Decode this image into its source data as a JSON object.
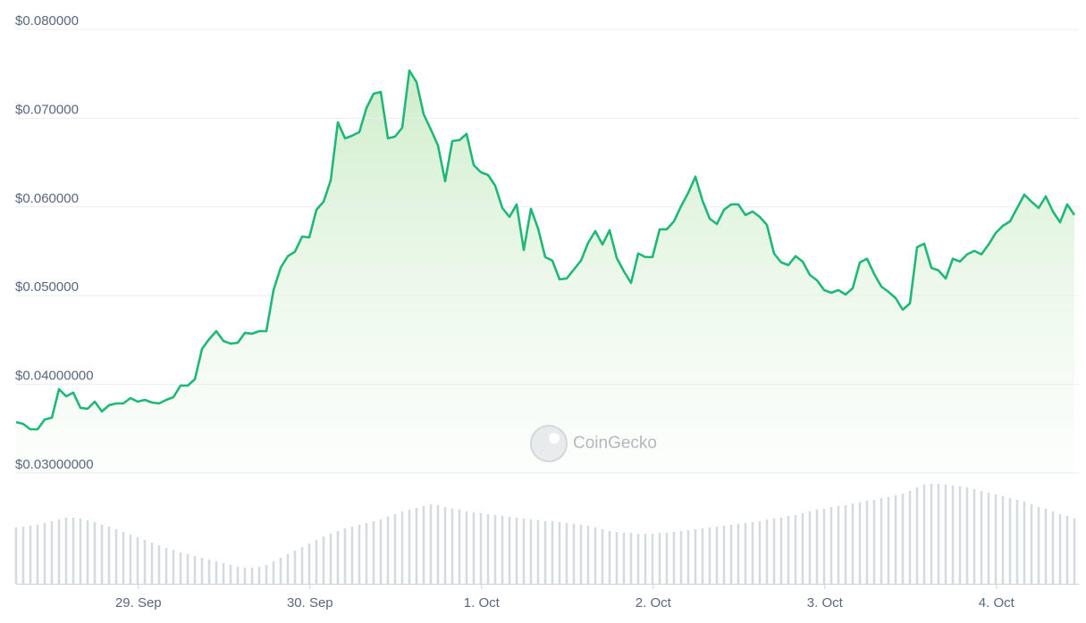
{
  "chart_data": {
    "type": "line",
    "color": "#1fb877",
    "values": [
      0.03574,
      0.03553,
      0.03493,
      0.03493,
      0.03604,
      0.03624,
      0.03946,
      0.03865,
      0.03906,
      0.03735,
      0.03724,
      0.03805,
      0.03694,
      0.03765,
      0.03785,
      0.03785,
      0.03845,
      0.03805,
      0.03825,
      0.03795,
      0.03785,
      0.03825,
      0.03855,
      0.03986,
      0.03986,
      0.04056,
      0.04399,
      0.04509,
      0.046,
      0.04489,
      0.04459,
      0.04469,
      0.0458,
      0.0457,
      0.046,
      0.046,
      0.05062,
      0.05314,
      0.05445,
      0.05495,
      0.05666,
      0.05656,
      0.05968,
      0.06058,
      0.063,
      0.06954,
      0.06773,
      0.06803,
      0.06843,
      0.07115,
      0.07276,
      0.07296,
      0.06773,
      0.06793,
      0.06893,
      0.07537,
      0.07406,
      0.07044,
      0.06873,
      0.06692,
      0.0629,
      0.06742,
      0.06753,
      0.06823,
      0.06471,
      0.0639,
      0.0636,
      0.06239,
      0.05988,
      0.05887,
      0.06028,
      0.05515,
      0.05978,
      0.05757,
      0.05435,
      0.05394,
      0.05183,
      0.05193,
      0.05294,
      0.05394,
      0.05596,
      0.05726,
      0.05576,
      0.05736,
      0.05425,
      0.05274,
      0.05143,
      0.05475,
      0.05435,
      0.05435,
      0.05747,
      0.05747,
      0.05837,
      0.06008,
      0.06159,
      0.0634,
      0.06068,
      0.05867,
      0.05807,
      0.05968,
      0.06028,
      0.06028,
      0.05908,
      0.05948,
      0.05887,
      0.05797,
      0.05475,
      0.05374,
      0.05344,
      0.05445,
      0.05384,
      0.05233,
      0.05173,
      0.05062,
      0.05032,
      0.05062,
      0.05012,
      0.05083,
      0.05374,
      0.05415,
      0.05244,
      0.05103,
      0.05042,
      0.04972,
      0.04841,
      0.04912,
      0.05545,
      0.05586,
      0.05314,
      0.05284,
      0.05193,
      0.05415,
      0.05384,
      0.05465,
      0.05505,
      0.05465,
      0.05576,
      0.05706,
      0.05787,
      0.05837,
      0.05988,
      0.06139,
      0.06058,
      0.05988,
      0.06119,
      0.05948,
      0.05827,
      0.06028,
      0.05908
    ],
    "volume": {
      "color": "#d5dade",
      "values": [
        63,
        64,
        65,
        66,
        68,
        70,
        72,
        74,
        74,
        73,
        71,
        69,
        66,
        64,
        61,
        58,
        55,
        52,
        49,
        46,
        43,
        40,
        38,
        35,
        33,
        31,
        29,
        27,
        25,
        23,
        21,
        19,
        18,
        18,
        19,
        21,
        25,
        29,
        33,
        37,
        41,
        45,
        49,
        53,
        56,
        59,
        62,
        64,
        66,
        68,
        70,
        72,
        75,
        78,
        81,
        83,
        85,
        87,
        89,
        88,
        86,
        84,
        83,
        81,
        80,
        79,
        78,
        77,
        76,
        75,
        74,
        73,
        72,
        71,
        70,
        70,
        69,
        68,
        67,
        66,
        65,
        63,
        61,
        59,
        58,
        57,
        57,
        56,
        56,
        56,
        57,
        57,
        58,
        59,
        60,
        61,
        62,
        63,
        64,
        65,
        66,
        67,
        68,
        69,
        70,
        72,
        73,
        74,
        76,
        77,
        79,
        81,
        83,
        84,
        86,
        87,
        88,
        90,
        91,
        93,
        94,
        96,
        97,
        99,
        101,
        104,
        108,
        111,
        112,
        112,
        111,
        110,
        109,
        108,
        106,
        104,
        102,
        100,
        98,
        96,
        94,
        92,
        89,
        86,
        84,
        81,
        78,
        76,
        73
      ]
    },
    "xlim": [
      0,
      148
    ],
    "xticks": [
      {
        "value": 17.1,
        "label": "29. Sep"
      },
      {
        "value": 41.1,
        "label": "30. Sep"
      },
      {
        "value": 65.1,
        "label": "1. Oct"
      },
      {
        "value": 89.1,
        "label": "2. Oct"
      },
      {
        "value": 113.1,
        "label": "3. Oct"
      },
      {
        "value": 137.1,
        "label": "4. Oct"
      }
    ],
    "ylim": [
      0.03,
      0.08
    ],
    "yticks": [
      {
        "value": 0.03,
        "label": "$0.03000000"
      },
      {
        "value": 0.04,
        "label": "$0.04000000"
      },
      {
        "value": 0.05,
        "label": "$0.050000"
      },
      {
        "value": 0.06,
        "label": "$0.060000"
      },
      {
        "value": 0.07,
        "label": "$0.070000"
      },
      {
        "value": 0.08,
        "label": "$0.080000"
      }
    ],
    "grid": true,
    "watermark": "CoinGecko"
  }
}
